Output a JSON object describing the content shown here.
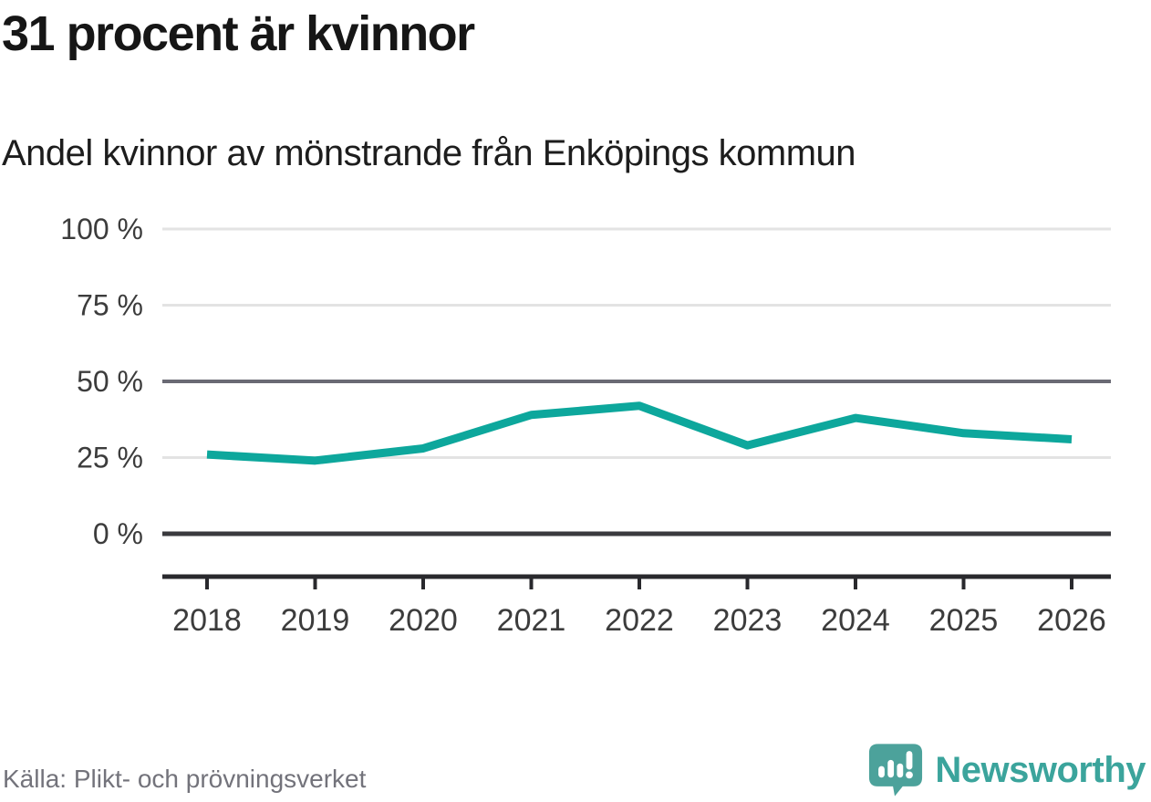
{
  "header": {
    "title": "31 procent är kvinnor",
    "subtitle": "Andel kvinnor av mönstrande från Enköpings kommun"
  },
  "footer": {
    "source": "Källa: Plikt- och prövningsverket",
    "brand": "Newsworthy"
  },
  "colors": {
    "line": "#0da79c",
    "grid_light": "#e3e3e3",
    "grid_mid": "#6a6a74",
    "grid_zero": "#3a3a3e",
    "axis": "#29292d",
    "axis_text": "#3c3c3c",
    "title_text": "#161616",
    "source_text": "#73737b",
    "brand_teal": "#4ca29b",
    "brand_text": "#3ba49c"
  },
  "chart_data": {
    "type": "line",
    "title": "31 procent är kvinnor",
    "subtitle": "Andel kvinnor av mönstrande från Enköpings kommun",
    "series_name": "Andel kvinnor av mönstrande, Enköpings kommun",
    "categories": [
      "2018",
      "2019",
      "2020",
      "2021",
      "2022",
      "2023",
      "2024",
      "2025",
      "2026"
    ],
    "values": [
      26,
      24,
      28,
      39,
      42,
      29,
      38,
      33,
      31
    ],
    "unit": "%",
    "ylim": [
      0,
      100
    ],
    "ytick_values": [
      100,
      75,
      50,
      25,
      0
    ],
    "ytick_labels": [
      "100 %",
      "75 %",
      "50 %",
      "25 %",
      "0 %"
    ],
    "grid": "horizontal",
    "legend": "none",
    "line_color": "#0da79c"
  }
}
